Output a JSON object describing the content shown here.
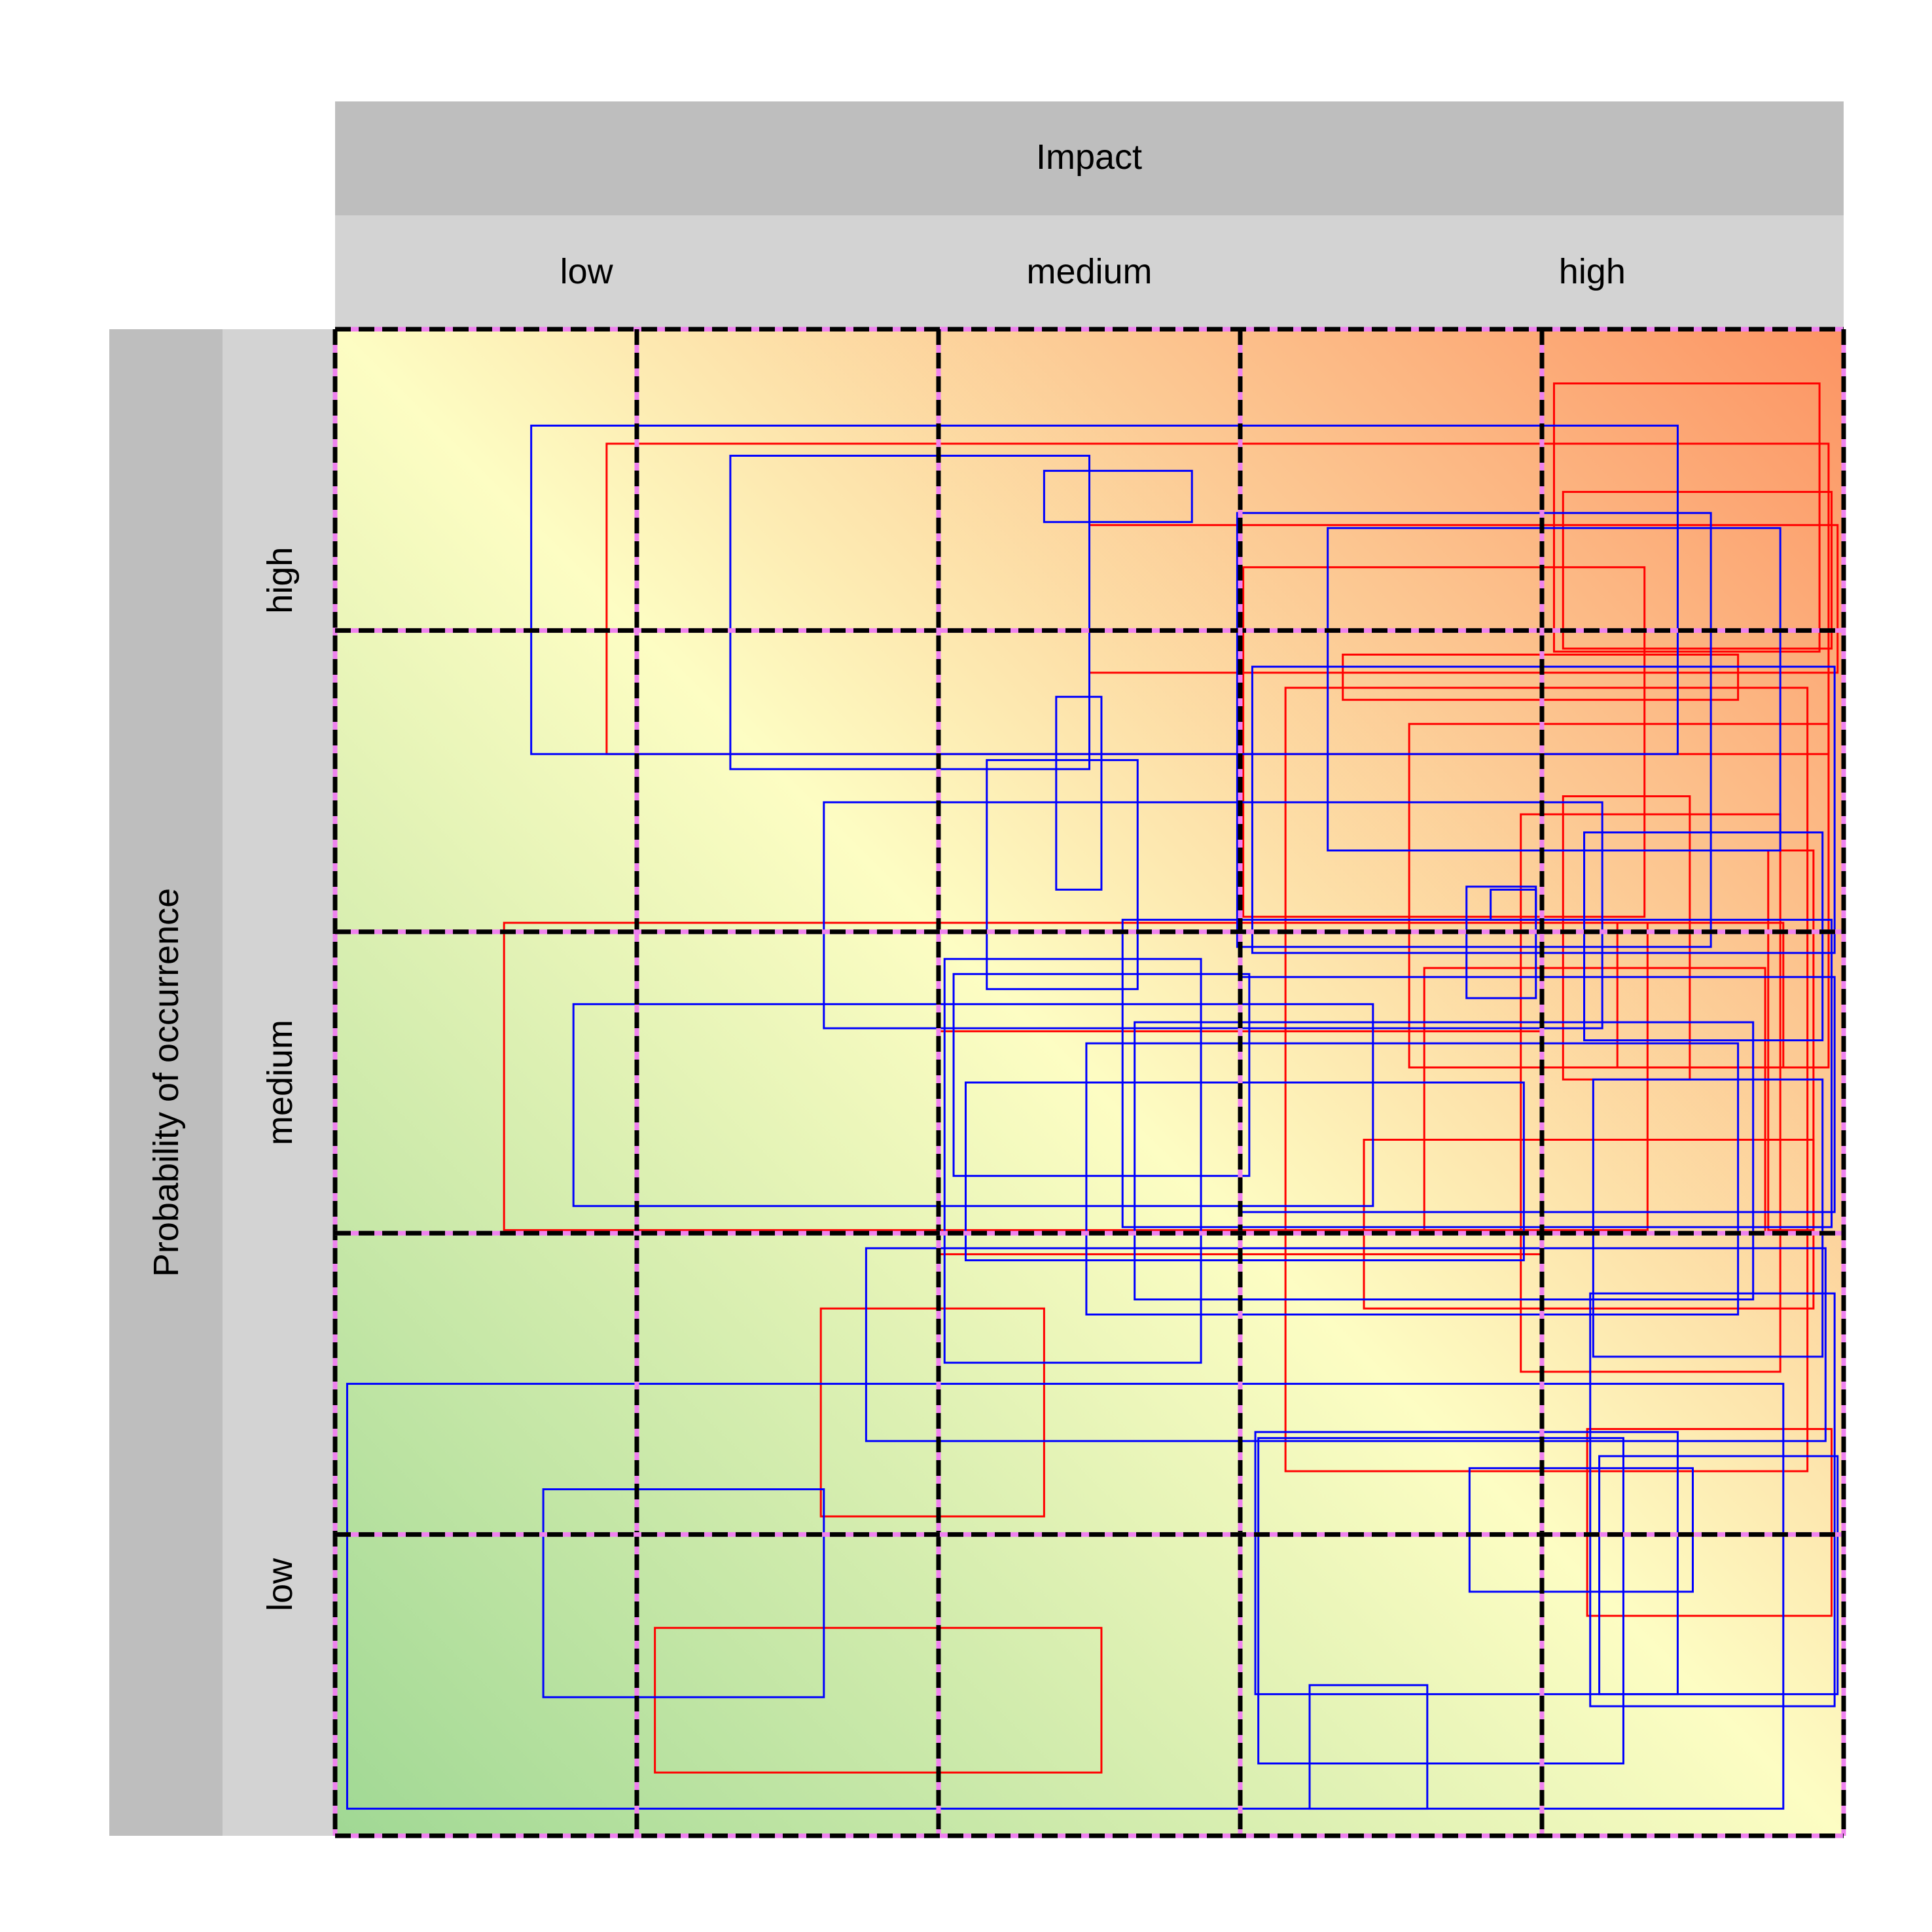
{
  "chart_data": {
    "type": "heatmap",
    "subtype": "risk-matrix",
    "title": "",
    "x_strip_label": "Impact",
    "y_strip_label": "Probability of occurrence",
    "x_tick_labels": [
      "low",
      "medium",
      "high"
    ],
    "y_tick_labels": [
      "low",
      "medium",
      "high"
    ],
    "xlim": [
      0,
      5
    ],
    "ylim": [
      0,
      5
    ],
    "grid_cells": 5,
    "gradient": {
      "low_corner": "bottom-left",
      "high_corner": "top-right",
      "colors": [
        "#a0d894",
        "#fdfdc3",
        "#fc9463"
      ]
    },
    "colors": {
      "grid_dash": "#000000",
      "grid_dash_alt": "#ee82ee",
      "strip_dark": "#bebebe",
      "strip_light": "#d3d3d3",
      "red_series": "#ff0000",
      "blue_series": "#0000ff"
    },
    "rects": [
      {
        "color": "red",
        "x0": 0.9,
        "x1": 4.95,
        "y0": 3.59,
        "y1": 4.62
      },
      {
        "color": "red",
        "x0": 4.04,
        "x1": 4.92,
        "y0": 3.93,
        "y1": 4.82
      },
      {
        "color": "red",
        "x0": 4.07,
        "x1": 4.96,
        "y0": 3.94,
        "y1": 4.46
      },
      {
        "color": "red",
        "x0": 2.5,
        "x1": 4.98,
        "y0": 3.86,
        "y1": 4.35
      },
      {
        "color": "red",
        "x0": 3.01,
        "x1": 4.34,
        "y0": 3.05,
        "y1": 4.21
      },
      {
        "color": "red",
        "x0": 3.34,
        "x1": 4.65,
        "y0": 3.77,
        "y1": 3.92
      },
      {
        "color": "red",
        "x0": 0.56,
        "x1": 4.35,
        "y0": 2.01,
        "y1": 3.03
      },
      {
        "color": "red",
        "x0": 3.15,
        "x1": 4.88,
        "y0": 1.21,
        "y1": 3.81
      },
      {
        "color": "red",
        "x0": 3.56,
        "x1": 4.95,
        "y0": 2.55,
        "y1": 3.69
      },
      {
        "color": "red",
        "x0": 3.93,
        "x1": 4.79,
        "y0": 1.54,
        "y1": 3.39
      },
      {
        "color": "red",
        "x0": 4.07,
        "x1": 4.49,
        "y0": 2.51,
        "y1": 3.45
      },
      {
        "color": "red",
        "x0": 4.75,
        "x1": 4.9,
        "y0": 2.01,
        "y1": 3.27
      },
      {
        "color": "red",
        "x0": 4.25,
        "x1": 4.8,
        "y0": 2.55,
        "y1": 3.03
      },
      {
        "color": "red",
        "x0": 3.61,
        "x1": 4.74,
        "y0": 2.0,
        "y1": 2.88
      },
      {
        "color": "red",
        "x0": 2.0,
        "x1": 4.0,
        "y0": 1.93,
        "y1": 2.67
      },
      {
        "color": "red",
        "x0": 3.41,
        "x1": 4.9,
        "y0": 1.75,
        "y1": 2.31
      },
      {
        "color": "red",
        "x0": 4.15,
        "x1": 4.96,
        "y0": 0.73,
        "y1": 1.35
      },
      {
        "color": "red",
        "x0": 1.61,
        "x1": 2.35,
        "y0": 1.06,
        "y1": 1.75
      },
      {
        "color": "red",
        "x0": 1.06,
        "x1": 2.54,
        "y0": 0.21,
        "y1": 0.69
      },
      {
        "color": "blue",
        "x0": 0.65,
        "x1": 4.45,
        "y0": 3.59,
        "y1": 4.68
      },
      {
        "color": "blue",
        "x0": 1.31,
        "x1": 2.5,
        "y0": 3.54,
        "y1": 4.58
      },
      {
        "color": "blue",
        "x0": 2.35,
        "x1": 2.84,
        "y0": 4.36,
        "y1": 4.53
      },
      {
        "color": "blue",
        "x0": 2.99,
        "x1": 4.56,
        "y0": 2.95,
        "y1": 4.39
      },
      {
        "color": "blue",
        "x0": 3.29,
        "x1": 4.79,
        "y0": 3.27,
        "y1": 4.34
      },
      {
        "color": "blue",
        "x0": 2.39,
        "x1": 2.54,
        "y0": 3.14,
        "y1": 3.78
      },
      {
        "color": "blue",
        "x0": 3.04,
        "x1": 4.97,
        "y0": 2.93,
        "y1": 3.88
      },
      {
        "color": "blue",
        "x0": 2.16,
        "x1": 2.66,
        "y0": 2.81,
        "y1": 3.57
      },
      {
        "color": "blue",
        "x0": 1.62,
        "x1": 4.2,
        "y0": 2.68,
        "y1": 3.43
      },
      {
        "color": "blue",
        "x0": 4.14,
        "x1": 4.93,
        "y0": 2.64,
        "y1": 3.33
      },
      {
        "color": "blue",
        "x0": 3.75,
        "x1": 3.98,
        "y0": 2.78,
        "y1": 3.15
      },
      {
        "color": "blue",
        "x0": 3.83,
        "x1": 3.98,
        "y0": 3.04,
        "y1": 3.14
      },
      {
        "color": "blue",
        "x0": 2.61,
        "x1": 4.96,
        "y0": 2.02,
        "y1": 3.04
      },
      {
        "color": "blue",
        "x0": 2.02,
        "x1": 2.87,
        "y0": 1.57,
        "y1": 2.91
      },
      {
        "color": "blue",
        "x0": 2.05,
        "x1": 3.03,
        "y0": 2.19,
        "y1": 2.86
      },
      {
        "color": "blue",
        "x0": 0.79,
        "x1": 3.44,
        "y0": 2.09,
        "y1": 2.76
      },
      {
        "color": "blue",
        "x0": 2.49,
        "x1": 4.65,
        "y0": 1.73,
        "y1": 2.63
      },
      {
        "color": "blue",
        "x0": 2.65,
        "x1": 4.7,
        "y0": 1.78,
        "y1": 2.7
      },
      {
        "color": "blue",
        "x0": 2.09,
        "x1": 3.94,
        "y0": 1.91,
        "y1": 2.5
      },
      {
        "color": "blue",
        "x0": 3.0,
        "x1": 4.97,
        "y0": 2.07,
        "y1": 2.85
      },
      {
        "color": "blue",
        "x0": 1.76,
        "x1": 4.94,
        "y0": 1.31,
        "y1": 1.95
      },
      {
        "color": "blue",
        "x0": 4.17,
        "x1": 4.93,
        "y0": 1.59,
        "y1": 2.51
      },
      {
        "color": "blue",
        "x0": 4.16,
        "x1": 4.97,
        "y0": 0.43,
        "y1": 1.8
      },
      {
        "color": "blue",
        "x0": 0.04,
        "x1": 4.8,
        "y0": 0.09,
        "y1": 1.5
      },
      {
        "color": "blue",
        "x0": 0.69,
        "x1": 1.62,
        "y0": 0.46,
        "y1": 1.15
      },
      {
        "color": "blue",
        "x0": 3.05,
        "x1": 4.45,
        "y0": 0.47,
        "y1": 1.34
      },
      {
        "color": "blue",
        "x0": 3.23,
        "x1": 3.62,
        "y0": 0.09,
        "y1": 0.5
      },
      {
        "color": "blue",
        "x0": 3.76,
        "x1": 4.5,
        "y0": 0.81,
        "y1": 1.22
      },
      {
        "color": "blue",
        "x0": 4.19,
        "x1": 4.98,
        "y0": 0.47,
        "y1": 1.26
      },
      {
        "color": "blue",
        "x0": 3.06,
        "x1": 4.27,
        "y0": 0.24,
        "y1": 1.32
      }
    ]
  }
}
